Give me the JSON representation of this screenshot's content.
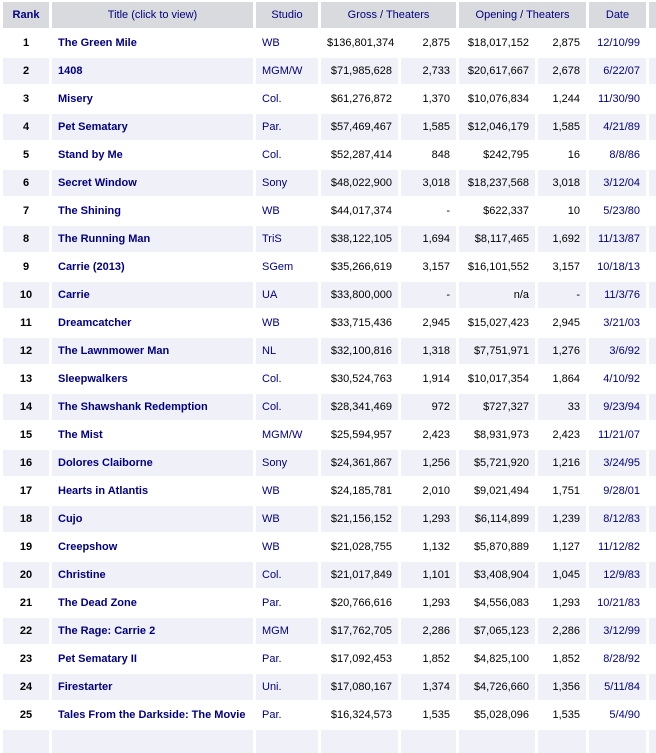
{
  "colors": {
    "header_bg": "#d8dade",
    "row_alt_bg": "#f0f0f8",
    "link_navy": "#000080",
    "text_black": "#000000"
  },
  "table": {
    "header": {
      "rank": "Rank",
      "title": "Title (click to view)",
      "studio": "Studio",
      "gross": "Gross / Theaters",
      "opening": "Opening / Theaters",
      "date": "Date"
    },
    "rows": [
      {
        "rank": "1",
        "title": "The Green Mile",
        "studio": "WB",
        "gross": "$136,801,374",
        "theaters": "2,875",
        "opening": "$18,017,152",
        "opening_theaters": "2,875",
        "date": "12/10/99"
      },
      {
        "rank": "2",
        "title": "1408",
        "studio": "MGM/W",
        "gross": "$71,985,628",
        "theaters": "2,733",
        "opening": "$20,617,667",
        "opening_theaters": "2,678",
        "date": "6/22/07"
      },
      {
        "rank": "3",
        "title": "Misery",
        "studio": "Col.",
        "gross": "$61,276,872",
        "theaters": "1,370",
        "opening": "$10,076,834",
        "opening_theaters": "1,244",
        "date": "11/30/90"
      },
      {
        "rank": "4",
        "title": "Pet Sematary",
        "studio": "Par.",
        "gross": "$57,469,467",
        "theaters": "1,585",
        "opening": "$12,046,179",
        "opening_theaters": "1,585",
        "date": "4/21/89"
      },
      {
        "rank": "5",
        "title": "Stand by Me",
        "studio": "Col.",
        "gross": "$52,287,414",
        "theaters": "848",
        "opening": "$242,795",
        "opening_theaters": "16",
        "date": "8/8/86"
      },
      {
        "rank": "6",
        "title": "Secret Window",
        "studio": "Sony",
        "gross": "$48,022,900",
        "theaters": "3,018",
        "opening": "$18,237,568",
        "opening_theaters": "3,018",
        "date": "3/12/04"
      },
      {
        "rank": "7",
        "title": "The Shining",
        "studio": "WB",
        "gross": "$44,017,374",
        "theaters": "-",
        "opening": "$622,337",
        "opening_theaters": "10",
        "date": "5/23/80"
      },
      {
        "rank": "8",
        "title": "The Running Man",
        "studio": "TriS",
        "gross": "$38,122,105",
        "theaters": "1,694",
        "opening": "$8,117,465",
        "opening_theaters": "1,692",
        "date": "11/13/87"
      },
      {
        "rank": "9",
        "title": "Carrie (2013)",
        "studio": "SGem",
        "gross": "$35,266,619",
        "theaters": "3,157",
        "opening": "$16,101,552",
        "opening_theaters": "3,157",
        "date": "10/18/13"
      },
      {
        "rank": "10",
        "title": "Carrie",
        "studio": "UA",
        "gross": "$33,800,000",
        "theaters": "-",
        "opening": "n/a",
        "opening_theaters": "-",
        "date": "11/3/76"
      },
      {
        "rank": "11",
        "title": "Dreamcatcher",
        "studio": "WB",
        "gross": "$33,715,436",
        "theaters": "2,945",
        "opening": "$15,027,423",
        "opening_theaters": "2,945",
        "date": "3/21/03"
      },
      {
        "rank": "12",
        "title": "The Lawnmower Man",
        "studio": "NL",
        "gross": "$32,100,816",
        "theaters": "1,318",
        "opening": "$7,751,971",
        "opening_theaters": "1,276",
        "date": "3/6/92"
      },
      {
        "rank": "13",
        "title": "Sleepwalkers",
        "studio": "Col.",
        "gross": "$30,524,763",
        "theaters": "1,914",
        "opening": "$10,017,354",
        "opening_theaters": "1,864",
        "date": "4/10/92"
      },
      {
        "rank": "14",
        "title": "The Shawshank Redemption",
        "studio": "Col.",
        "gross": "$28,341,469",
        "theaters": "972",
        "opening": "$727,327",
        "opening_theaters": "33",
        "date": "9/23/94"
      },
      {
        "rank": "15",
        "title": "The Mist",
        "studio": "MGM/W",
        "gross": "$25,594,957",
        "theaters": "2,423",
        "opening": "$8,931,973",
        "opening_theaters": "2,423",
        "date": "11/21/07"
      },
      {
        "rank": "16",
        "title": "Dolores Claiborne",
        "studio": "Sony",
        "gross": "$24,361,867",
        "theaters": "1,256",
        "opening": "$5,721,920",
        "opening_theaters": "1,216",
        "date": "3/24/95"
      },
      {
        "rank": "17",
        "title": "Hearts in Atlantis",
        "studio": "WB",
        "gross": "$24,185,781",
        "theaters": "2,010",
        "opening": "$9,021,494",
        "opening_theaters": "1,751",
        "date": "9/28/01"
      },
      {
        "rank": "18",
        "title": "Cujo",
        "studio": "WB",
        "gross": "$21,156,152",
        "theaters": "1,293",
        "opening": "$6,114,899",
        "opening_theaters": "1,239",
        "date": "8/12/83"
      },
      {
        "rank": "19",
        "title": "Creepshow",
        "studio": "WB",
        "gross": "$21,028,755",
        "theaters": "1,132",
        "opening": "$5,870,889",
        "opening_theaters": "1,127",
        "date": "11/12/82"
      },
      {
        "rank": "20",
        "title": "Christine",
        "studio": "Col.",
        "gross": "$21,017,849",
        "theaters": "1,101",
        "opening": "$3,408,904",
        "opening_theaters": "1,045",
        "date": "12/9/83"
      },
      {
        "rank": "21",
        "title": "The Dead Zone",
        "studio": "Par.",
        "gross": "$20,766,616",
        "theaters": "1,293",
        "opening": "$4,556,083",
        "opening_theaters": "1,293",
        "date": "10/21/83"
      },
      {
        "rank": "22",
        "title": "The Rage: Carrie 2",
        "studio": "MGM",
        "gross": "$17,762,705",
        "theaters": "2,286",
        "opening": "$7,065,123",
        "opening_theaters": "2,286",
        "date": "3/12/99"
      },
      {
        "rank": "23",
        "title": "Pet Sematary II",
        "studio": "Par.",
        "gross": "$17,092,453",
        "theaters": "1,852",
        "opening": "$4,825,100",
        "opening_theaters": "1,852",
        "date": "8/28/92"
      },
      {
        "rank": "24",
        "title": "Firestarter",
        "studio": "Uni.",
        "gross": "$17,080,167",
        "theaters": "1,374",
        "opening": "$4,726,660",
        "opening_theaters": "1,356",
        "date": "5/11/84"
      },
      {
        "rank": "25",
        "title": "Tales From the Darkside: The Movie",
        "studio": "Par.",
        "gross": "$16,324,573",
        "theaters": "1,535",
        "opening": "$5,028,096",
        "opening_theaters": "1,535",
        "date": "5/4/90"
      }
    ]
  }
}
